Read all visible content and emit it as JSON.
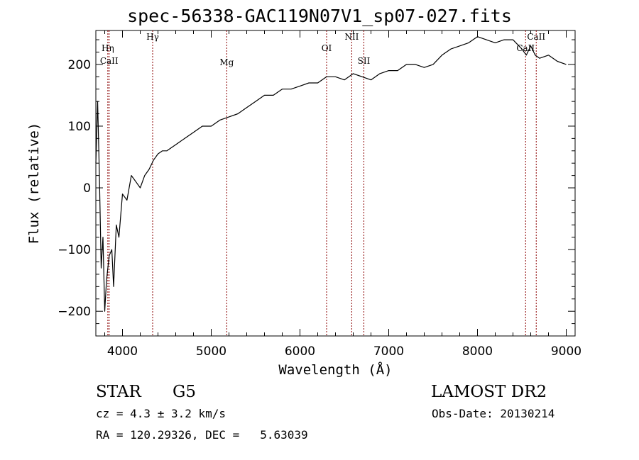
{
  "chart_data": {
    "type": "line",
    "title": "spec-56338-GAC119N07V1_sp07-027.fits",
    "xlabel": "Wavelength (Å)",
    "ylabel": "Flux (relative)",
    "xlim": [
      3700,
      9100
    ],
    "ylim": [
      -240,
      255
    ],
    "xticks": [
      4000,
      5000,
      6000,
      7000,
      8000,
      9000
    ],
    "yticks": [
      -200,
      -100,
      0,
      100,
      200
    ],
    "grid": false,
    "legend": "none",
    "line_color": "#000000",
    "marker_color": "#8b0000",
    "spectral_lines": [
      {
        "label": "Hη",
        "wavelength": 3835
      },
      {
        "label": "CaII",
        "wavelength": 3850
      },
      {
        "label": "Hγ",
        "wavelength": 4340
      },
      {
        "label": "Mg",
        "wavelength": 5175
      },
      {
        "label": "OI",
        "wavelength": 6300
      },
      {
        "label": "NII",
        "wavelength": 6583
      },
      {
        "label": "SII",
        "wavelength": 6720
      },
      {
        "label": "CaII",
        "wavelength": 8542
      },
      {
        "label": "CaII",
        "wavelength": 8662
      }
    ],
    "series": [
      {
        "x": [
          3700,
          3720,
          3740,
          3760,
          3780,
          3800,
          3820,
          3850,
          3880,
          3900,
          3930,
          3960,
          4000,
          4050,
          4100,
          4150,
          4200,
          4250,
          4300,
          4350,
          4400,
          4450,
          4500,
          4600,
          4700,
          4800,
          4900,
          5000,
          5100,
          5200,
          5300,
          5400,
          5500,
          5600,
          5700,
          5800,
          5900,
          6000,
          6100,
          6200,
          6300,
          6400,
          6500,
          6600,
          6700,
          6800,
          6900,
          7000,
          7100,
          7200,
          7300,
          7400,
          7500,
          7600,
          7700,
          7800,
          7900,
          8000,
          8100,
          8200,
          8300,
          8400,
          8500,
          8550,
          8600,
          8650,
          8700,
          8800,
          8900,
          9000
        ],
        "y": [
          40,
          140,
          20,
          -130,
          -80,
          -200,
          -150,
          -110,
          -100,
          -160,
          -60,
          -80,
          -10,
          -20,
          20,
          10,
          0,
          20,
          30,
          45,
          55,
          60,
          60,
          70,
          80,
          90,
          100,
          100,
          110,
          115,
          120,
          130,
          140,
          150,
          150,
          160,
          160,
          165,
          170,
          170,
          180,
          180,
          175,
          185,
          180,
          175,
          185,
          190,
          190,
          200,
          200,
          195,
          200,
          215,
          225,
          230,
          235,
          245,
          240,
          235,
          240,
          240,
          225,
          215,
          230,
          215,
          210,
          215,
          205,
          200
        ]
      }
    ]
  },
  "info": {
    "object_class": "STAR",
    "subclass": "G5",
    "survey": "LAMOST DR2",
    "cz": "cz = 4.3 ± 3.2 km/s",
    "obs_date": "Obs-Date: 20130214",
    "radec": "RA = 120.29326, DEC =   5.63039"
  }
}
